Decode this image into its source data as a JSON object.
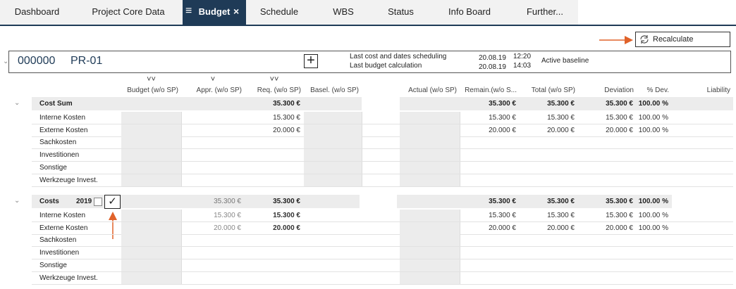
{
  "tabs": [
    "Dashboard",
    "Project Core Data",
    "Budget",
    "Schedule",
    "WBS",
    "Status",
    "Info Board",
    "Further..."
  ],
  "toolbar": {
    "button": "Recalculate"
  },
  "project": {
    "number": "000000",
    "name": "PR-01",
    "info": [
      {
        "label": "Last cost and dates scheduling",
        "date": "20.08.19",
        "time": "12:20"
      },
      {
        "label": "Last budget calculation",
        "date": "20.08.19",
        "time": "14:03"
      }
    ],
    "baseline": "Active baseline"
  },
  "columns": [
    "Budget (w/o SP)",
    "Appr. (w/o SP)",
    "Req. (w/o SP)",
    "Basel. (w/o SP)",
    "Actual (w/o SP)",
    "Remain.(w/o S...",
    "Total (w/o SP)",
    "Deviation",
    "% Dev.",
    "Liability"
  ],
  "sections": [
    {
      "title": "Cost Sum",
      "totals": [
        null,
        null,
        "35.300 €",
        null,
        null,
        "35.300 €",
        "35.300 €",
        "35.300 €",
        "100.00 %",
        null
      ],
      "rows": [
        {
          "label": "Interne Kosten",
          "cells": [
            null,
            null,
            "15.300 €",
            null,
            null,
            "15.300 €",
            "15.300 €",
            "15.300 €",
            "100.00 %",
            null
          ]
        },
        {
          "label": "Externe Kosten",
          "cells": [
            null,
            null,
            "20.000 €",
            null,
            null,
            "20.000 €",
            "20.000 €",
            "20.000 €",
            "100.00 %",
            null
          ]
        },
        {
          "label": "Sachkosten"
        },
        {
          "label": "Investitionen"
        },
        {
          "label": "Sonstige"
        },
        {
          "label": "Werkzeuge Invest."
        }
      ]
    },
    {
      "title": "Costs",
      "year": "2019",
      "totals": [
        null,
        "35.300 €",
        "35.300 €",
        null,
        null,
        "35.300 €",
        "35.300 €",
        "35.300 €",
        "100.00 %",
        null
      ],
      "rows": [
        {
          "label": "Interne Kosten",
          "cells": [
            null,
            "15.300 €",
            "15.300 €",
            null,
            null,
            "15.300 €",
            "15.300 €",
            "15.300 €",
            "100.00 %",
            null
          ]
        },
        {
          "label": "Externe Kosten",
          "cells": [
            null,
            "20.000 €",
            "20.000 €",
            null,
            null,
            "20.000 €",
            "20.000 €",
            "20.000 €",
            "100.00 %",
            null
          ]
        },
        {
          "label": "Sachkosten"
        },
        {
          "label": "Investitionen"
        },
        {
          "label": "Sonstige"
        },
        {
          "label": "Werkzeuge Invest."
        }
      ]
    }
  ]
}
